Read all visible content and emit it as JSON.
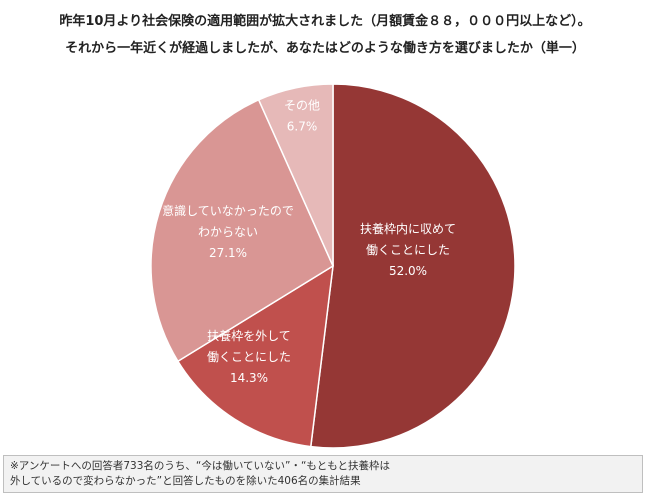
{
  "title": {
    "line1": "昨年10月より社会保険の適用範囲が拡大されました（月額賃金８８，０００円以上など）。",
    "line2": "それから一年近くが経過しましたが、あなたはどのような働き方を選びましたか（単一）"
  },
  "chart_data": {
    "type": "pie",
    "title": "昨年10月より社会保険の適用範囲が拡大されました（月額賃金８８，０００円以上など）。それから一年近くが経過しましたが、あなたはどのような働き方を選びましたか（単一）",
    "start": "12 o'clock, clockwise",
    "slices": [
      {
        "label_lines": [
          "扶養枠内に収めて",
          "働くことにした"
        ],
        "pct_label": "52.0%",
        "value": 52.0,
        "color": "#953735"
      },
      {
        "label_lines": [
          "扶養枠を外して",
          "働くことにした"
        ],
        "pct_label": "14.3%",
        "value": 14.3,
        "color": "#c0504d"
      },
      {
        "label_lines": [
          "意識していなかったので",
          "わからない"
        ],
        "pct_label": "27.1%",
        "value": 27.1,
        "color": "#d99694"
      },
      {
        "label_lines": [
          "その他"
        ],
        "pct_label": "6.7%",
        "value": 6.7,
        "color": "#e6b9b8"
      }
    ]
  },
  "note": {
    "line1": "※アンケートへの回答者733名のうち、“今は働いていない”・“もともと扶養枠は",
    "line2": "外しているので変わらなかった”と回答したものを除いた406名の集計結果"
  }
}
